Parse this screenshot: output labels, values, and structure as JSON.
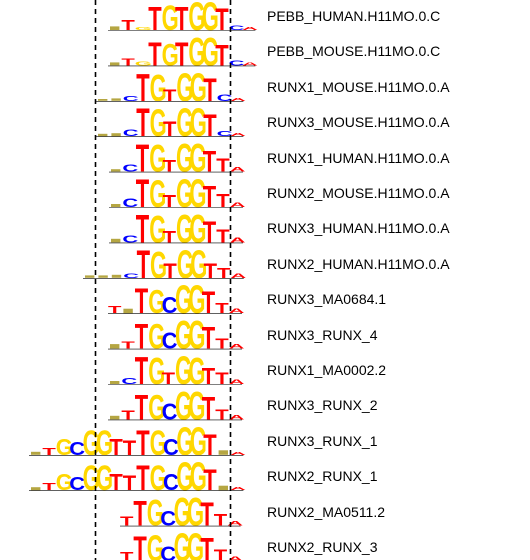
{
  "colors": {
    "A": "#ff0000",
    "C": "#0000ff",
    "G": "#ffd700",
    "T": "#ff0000",
    "T_alt": "#008000",
    "guide_line": "#000000",
    "baseline": "#000000"
  },
  "motifs": [
    {
      "name": "PEBB_HUMAN.H11MO.0.C",
      "logo": [
        [
          "x",
          0.12
        ],
        [
          "T",
          0.35
        ],
        [
          "G",
          0.1
        ],
        [
          "T",
          0.8
        ],
        [
          "G",
          0.85
        ],
        [
          "T",
          0.8
        ],
        [
          "G",
          0.95
        ],
        [
          "G",
          0.95
        ],
        [
          "T",
          0.75
        ],
        [
          "C",
          0.15
        ],
        [
          "A",
          0.1
        ]
      ]
    },
    {
      "name": "PEBB_MOUSE.H11MO.0.C",
      "logo": [
        [
          "x",
          0.1
        ],
        [
          "T",
          0.25
        ],
        [
          "G",
          0.12
        ],
        [
          "T",
          0.8
        ],
        [
          "G",
          0.75
        ],
        [
          "T",
          0.8
        ],
        [
          "G",
          0.95
        ],
        [
          "G",
          0.95
        ],
        [
          "T",
          0.7
        ],
        [
          "C",
          0.18
        ],
        [
          "A",
          0.1
        ]
      ]
    },
    {
      "name": "RUNX1_MOUSE.H11MO.0.A",
      "logo": [
        [
          "x",
          0.06
        ],
        [
          "x",
          0.08
        ],
        [
          "C",
          0.18
        ],
        [
          "T",
          0.92
        ],
        [
          "G",
          0.9
        ],
        [
          "T",
          0.4
        ],
        [
          "G",
          0.95
        ],
        [
          "G",
          0.95
        ],
        [
          "T",
          0.78
        ],
        [
          "C",
          0.22
        ],
        [
          "A",
          0.1
        ]
      ]
    },
    {
      "name": "RUNX3_MOUSE.H11MO.0.A",
      "logo": [
        [
          "x",
          0.08
        ],
        [
          "x",
          0.1
        ],
        [
          "C",
          0.22
        ],
        [
          "T",
          0.95
        ],
        [
          "G",
          0.92
        ],
        [
          "T",
          0.5
        ],
        [
          "G",
          0.95
        ],
        [
          "G",
          0.95
        ],
        [
          "T",
          0.75
        ],
        [
          "C",
          0.18
        ],
        [
          "A",
          0.1
        ]
      ]
    },
    {
      "name": "RUNX1_HUMAN.H11MO.0.A",
      "logo": [
        [
          "x",
          0.08
        ],
        [
          "C",
          0.25
        ],
        [
          "T",
          0.92
        ],
        [
          "G",
          0.92
        ],
        [
          "T",
          0.4
        ],
        [
          "G",
          0.95
        ],
        [
          "G",
          0.95
        ],
        [
          "T",
          0.7
        ],
        [
          "T",
          0.45
        ],
        [
          "A",
          0.15
        ]
      ]
    },
    {
      "name": "RUNX2_MOUSE.H11MO.0.A",
      "logo": [
        [
          "x",
          0.1
        ],
        [
          "C",
          0.28
        ],
        [
          "T",
          0.95
        ],
        [
          "G",
          0.92
        ],
        [
          "T",
          0.42
        ],
        [
          "G",
          0.95
        ],
        [
          "G",
          0.95
        ],
        [
          "T",
          0.72
        ],
        [
          "T",
          0.45
        ],
        [
          "A",
          0.15
        ]
      ]
    },
    {
      "name": "RUNX3_HUMAN.H11MO.0.A",
      "logo": [
        [
          "x",
          0.12
        ],
        [
          "C",
          0.25
        ],
        [
          "T",
          0.95
        ],
        [
          "G",
          0.92
        ],
        [
          "T",
          0.4
        ],
        [
          "G",
          0.95
        ],
        [
          "G",
          0.95
        ],
        [
          "T",
          0.72
        ],
        [
          "T",
          0.45
        ],
        [
          "A",
          0.18
        ]
      ]
    },
    {
      "name": "RUNX2_HUMAN.H11MO.0.A",
      "logo": [
        [
          "x",
          0.08
        ],
        [
          "x",
          0.08
        ],
        [
          "x",
          0.1
        ],
        [
          "C",
          0.15
        ],
        [
          "T",
          0.95
        ],
        [
          "G",
          0.9
        ],
        [
          "T",
          0.5
        ],
        [
          "G",
          0.95
        ],
        [
          "G",
          0.95
        ],
        [
          "T",
          0.5
        ],
        [
          "T",
          0.35
        ],
        [
          "A",
          0.15
        ]
      ]
    },
    {
      "name": "RUNX3_MA0684.1",
      "logo": [
        [
          "T",
          0.25
        ],
        [
          "x",
          0.15
        ],
        [
          "T",
          0.85
        ],
        [
          "G",
          0.8
        ],
        [
          "C",
          0.55
        ],
        [
          "G",
          0.95
        ],
        [
          "G",
          0.95
        ],
        [
          "T",
          0.75
        ],
        [
          "T",
          0.35
        ],
        [
          "A",
          0.15
        ]
      ]
    },
    {
      "name": "RUNX3_RUNX_4",
      "logo": [
        [
          "x",
          0.15
        ],
        [
          "T",
          0.25
        ],
        [
          "T",
          0.85
        ],
        [
          "G",
          0.85
        ],
        [
          "C",
          0.55
        ],
        [
          "G",
          0.95
        ],
        [
          "G",
          0.95
        ],
        [
          "T",
          0.75
        ],
        [
          "T",
          0.35
        ],
        [
          "A",
          0.15
        ]
      ]
    },
    {
      "name": "RUNX1_MA0002.2",
      "logo": [
        [
          "x",
          0.1
        ],
        [
          "C",
          0.2
        ],
        [
          "T",
          0.92
        ],
        [
          "G",
          0.9
        ],
        [
          "T",
          0.4
        ],
        [
          "G",
          0.95
        ],
        [
          "G",
          0.9
        ],
        [
          "T",
          0.55
        ],
        [
          "T",
          0.4
        ],
        [
          "A",
          0.15
        ]
      ]
    },
    {
      "name": "RUNX3_RUNX_2",
      "logo": [
        [
          "x",
          0.12
        ],
        [
          "T",
          0.3
        ],
        [
          "T",
          0.85
        ],
        [
          "G",
          0.85
        ],
        [
          "C",
          0.55
        ],
        [
          "G",
          0.95
        ],
        [
          "G",
          0.95
        ],
        [
          "T",
          0.78
        ],
        [
          "T",
          0.35
        ],
        [
          "A",
          0.15
        ]
      ]
    },
    {
      "name": "RUNX3_RUNX_1",
      "logo": [
        [
          "x",
          0.1
        ],
        [
          "T",
          0.25
        ],
        [
          "G",
          0.55
        ],
        [
          "C",
          0.45
        ],
        [
          "G",
          0.85
        ],
        [
          "G",
          0.85
        ],
        [
          "T",
          0.55
        ],
        [
          "T",
          0.5
        ],
        [
          "T",
          0.85
        ],
        [
          "G",
          0.85
        ],
        [
          "C",
          0.55
        ],
        [
          "G",
          0.95
        ],
        [
          "G",
          0.95
        ],
        [
          "T",
          0.7
        ],
        [
          "x",
          0.15
        ],
        [
          "A",
          0.1
        ]
      ]
    },
    {
      "name": "RUNX2_RUNX_1",
      "logo": [
        [
          "x",
          0.1
        ],
        [
          "T",
          0.25
        ],
        [
          "G",
          0.55
        ],
        [
          "C",
          0.45
        ],
        [
          "G",
          0.85
        ],
        [
          "G",
          0.85
        ],
        [
          "T",
          0.55
        ],
        [
          "T",
          0.5
        ],
        [
          "T",
          0.85
        ],
        [
          "G",
          0.85
        ],
        [
          "C",
          0.55
        ],
        [
          "G",
          0.95
        ],
        [
          "G",
          0.95
        ],
        [
          "T",
          0.7
        ],
        [
          "x",
          0.15
        ],
        [
          "A",
          0.1
        ]
      ]
    },
    {
      "name": "RUNX2_MA0511.2",
      "logo": [
        [
          "T",
          0.3
        ],
        [
          "T",
          0.85
        ],
        [
          "G",
          0.88
        ],
        [
          "C",
          0.5
        ],
        [
          "G",
          0.95
        ],
        [
          "G",
          0.95
        ],
        [
          "T",
          0.8
        ],
        [
          "T",
          0.4
        ],
        [
          "A",
          0.15
        ]
      ]
    },
    {
      "name": "RUNX2_RUNX_3",
      "logo": [
        [
          "T",
          0.3
        ],
        [
          "T",
          0.85
        ],
        [
          "G",
          0.88
        ],
        [
          "C",
          0.5
        ],
        [
          "G",
          0.95
        ],
        [
          "G",
          0.95
        ],
        [
          "T",
          0.8
        ],
        [
          "T",
          0.4
        ],
        [
          "A",
          0.15
        ]
      ]
    }
  ]
}
